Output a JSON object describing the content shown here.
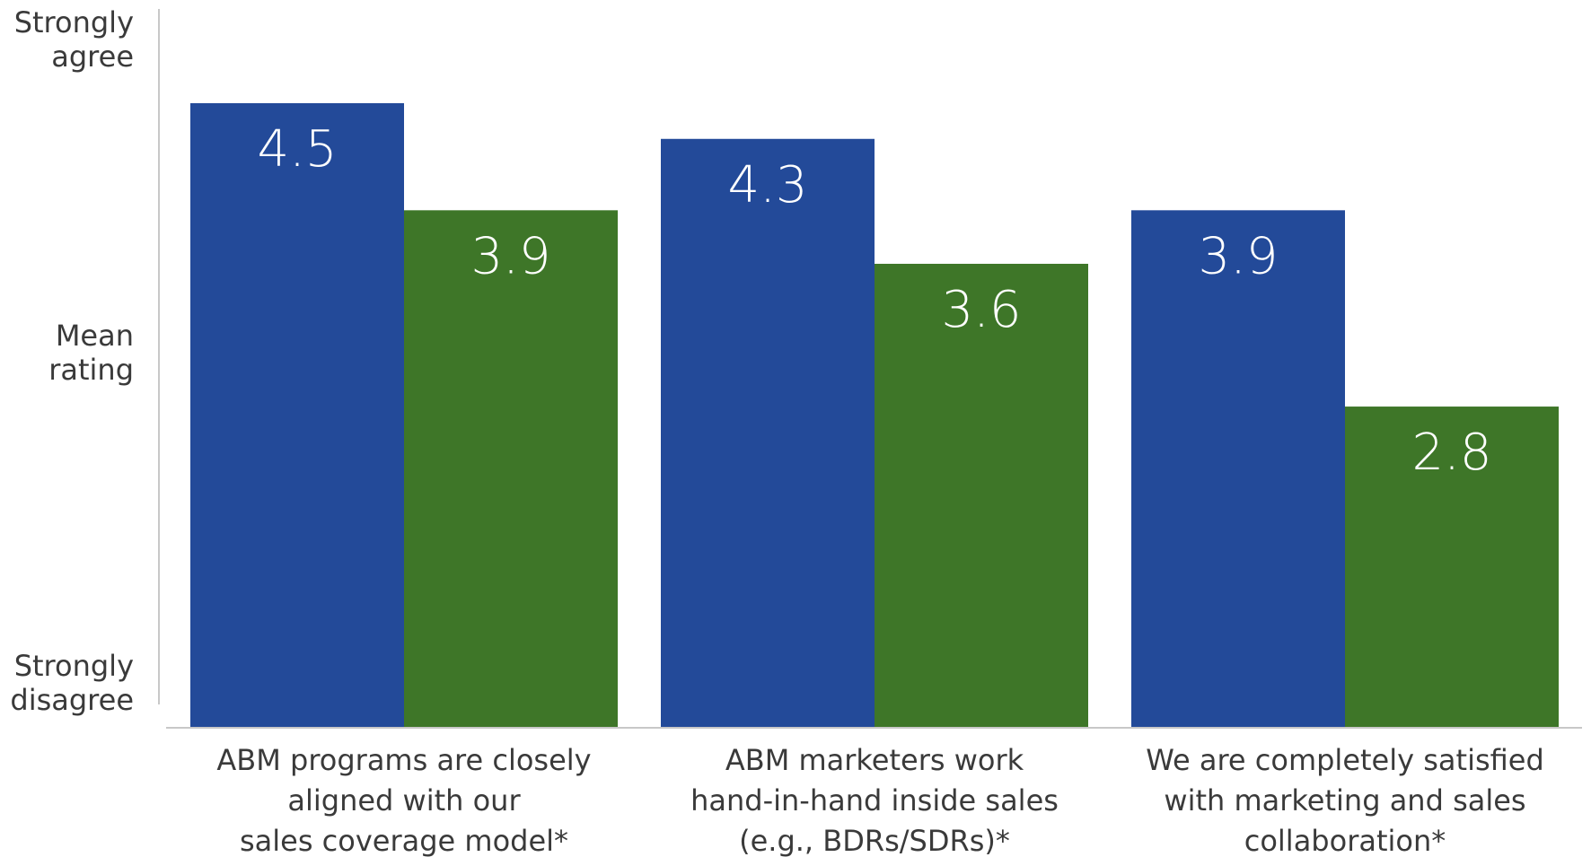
{
  "chart_data": {
    "type": "bar",
    "title": "",
    "xlabel": "",
    "ylabel": "",
    "ylim": [
      1,
      5
    ],
    "y_axis_labels": [
      {
        "value": 5,
        "lines": [
          "Strongly",
          "agree"
        ]
      },
      {
        "value": 3,
        "lines": [
          "Mean",
          "rating"
        ]
      },
      {
        "value": 1,
        "lines": [
          "Strongly",
          "disagree"
        ]
      }
    ],
    "categories": [
      [
        "ABM programs are closely",
        "aligned with our",
        "sales coverage model*"
      ],
      [
        "ABM marketers work",
        "hand-in-hand inside sales",
        "(e.g., BDRs/SDRs)*"
      ],
      [
        "We are completely satisfied",
        "with marketing and sales",
        "collaboration*"
      ]
    ],
    "series": [
      {
        "color": "#234a99",
        "values": [
          4.5,
          4.3,
          3.9
        ]
      },
      {
        "color": "#3e7628",
        "values": [
          3.9,
          3.6,
          2.8
        ]
      }
    ],
    "value_labels": [
      [
        "4.5",
        "4.3",
        "3.9"
      ],
      [
        "3.9",
        "3.6",
        "2.8"
      ]
    ],
    "grid": false,
    "legend": "none"
  }
}
